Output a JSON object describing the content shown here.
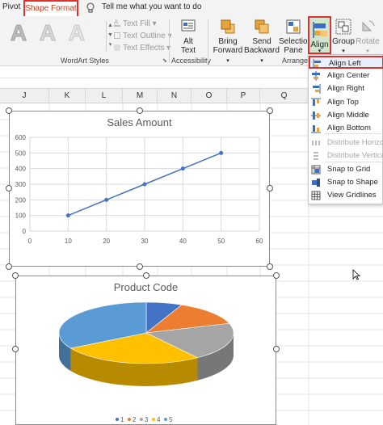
{
  "tabs": {
    "pivot": "Pivot",
    "shape_format": "Shape Format"
  },
  "tell_me": "Tell me what you want to do",
  "ribbon": {
    "wordart_letter": "A",
    "text_fill": "Text Fill",
    "text_outline": "Text Outline",
    "text_effects": "Text Effects",
    "wordart_group": "WordArt Styles",
    "alt_text": [
      "Alt",
      "Text"
    ],
    "accessibility_group": "Accessibility",
    "bring_forward": [
      "Bring",
      "Forward"
    ],
    "send_backward": [
      "Send",
      "Backward"
    ],
    "selection_pane": [
      "Selection",
      "Pane"
    ],
    "align": "Align",
    "group": "Group",
    "rotate": "Rotate",
    "arrange_group": "Arrange"
  },
  "columns": [
    "J",
    "K",
    "L",
    "M",
    "N",
    "O",
    "P",
    "Q"
  ],
  "align_menu": [
    {
      "label": "Align Left",
      "icon": "align-left-icon",
      "disabled": false,
      "highlight": true
    },
    {
      "label": "Align Center",
      "icon": "align-center-icon",
      "disabled": false
    },
    {
      "label": "Align Right",
      "icon": "align-right-icon",
      "disabled": false
    },
    {
      "label": "Align Top",
      "icon": "align-top-icon",
      "disabled": false
    },
    {
      "label": "Align Middle",
      "icon": "align-middle-icon",
      "disabled": false
    },
    {
      "label": "Align Bottom",
      "icon": "align-bottom-icon",
      "disabled": false
    },
    {
      "label": "Distribute Horizontally",
      "icon": "distribute-horizontally-icon",
      "disabled": true
    },
    {
      "label": "Distribute Vertically",
      "icon": "distribute-vertically-icon",
      "disabled": true
    },
    {
      "label": "Snap to Grid",
      "icon": "snap-to-grid-icon",
      "disabled": false
    },
    {
      "label": "Snap to Shape",
      "icon": "snap-to-shape-icon",
      "disabled": false
    },
    {
      "label": "View Gridlines",
      "icon": "view-gridlines-icon",
      "disabled": false
    }
  ],
  "colors": {
    "accent_red": "#e03030",
    "line_series": "#4472c4"
  },
  "chart_data": [
    {
      "type": "scatter",
      "title": "Sales Amount",
      "x": [
        10,
        20,
        30,
        40,
        50
      ],
      "y": [
        100,
        200,
        300,
        400,
        500
      ],
      "xlim": [
        0,
        60
      ],
      "ylim": [
        0,
        600
      ],
      "xticks": [
        0,
        10,
        20,
        30,
        40,
        50,
        60
      ],
      "yticks": [
        0,
        100,
        200,
        300,
        400,
        500,
        600
      ],
      "grid": true,
      "line": true
    },
    {
      "type": "pie",
      "title": "Product Code",
      "labels": [
        "1",
        "2",
        "3",
        "4",
        "5"
      ],
      "values": [
        10,
        20,
        30,
        40,
        50
      ],
      "colors": [
        "#4472c4",
        "#ed7d31",
        "#a5a5a5",
        "#ffc000",
        "#5b9bd5"
      ],
      "legend": "bottom"
    }
  ]
}
